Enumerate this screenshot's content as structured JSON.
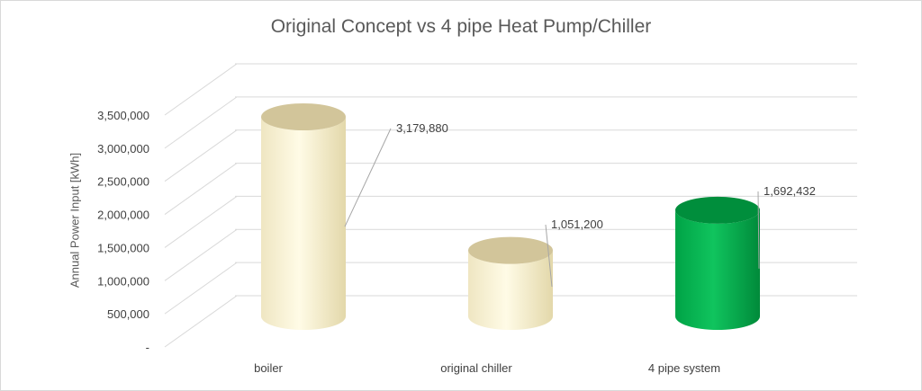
{
  "chart_data": {
    "type": "bar",
    "style": "3d-cylinder",
    "title": "Original Concept vs 4 pipe Heat Pump/Chiller",
    "xlabel": "",
    "ylabel": "Annual Power Input [kWh]",
    "ylim": [
      0,
      3500000
    ],
    "ytick_values": [
      0,
      500000,
      1000000,
      1500000,
      2000000,
      2500000,
      3000000,
      3500000
    ],
    "ytick_labels": [
      "-",
      "500,000",
      "1,000,000",
      "1,500,000",
      "2,000,000",
      "2,500,000",
      "3,000,000",
      "3,500,000"
    ],
    "grid": true,
    "categories": [
      "boiler",
      "original chiller",
      "4 pipe system"
    ],
    "values": [
      3179880,
      1051200,
      1692432
    ],
    "data_labels": [
      "3,179,880",
      "1,051,200",
      "1,692,432"
    ],
    "colors": [
      "#eee5c0",
      "#eee5c0",
      "#00b050"
    ]
  }
}
